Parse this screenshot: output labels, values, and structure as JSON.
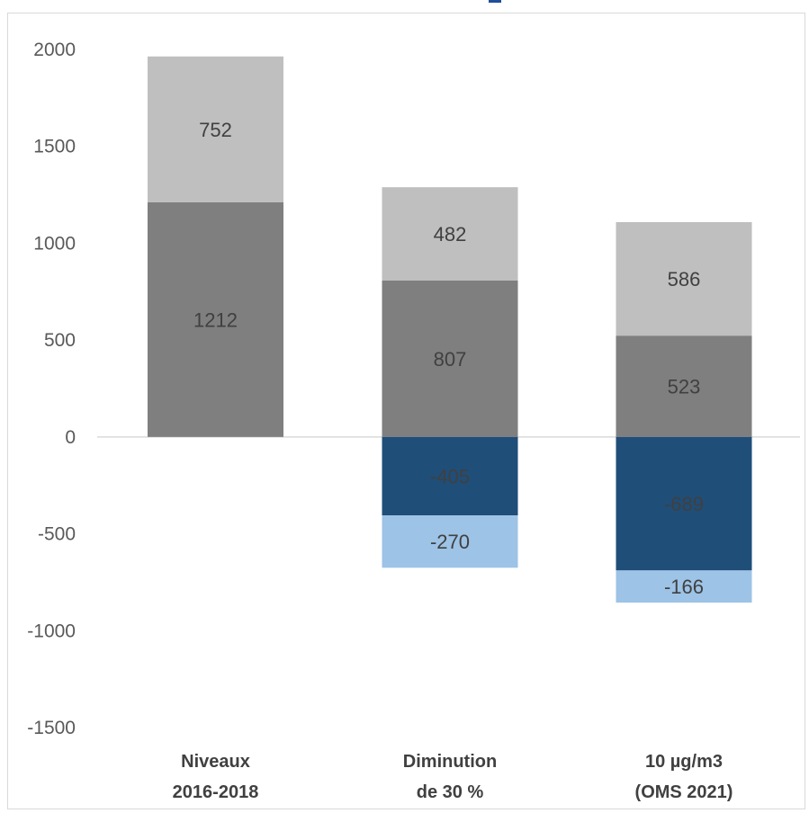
{
  "chart_data": {
    "type": "bar",
    "stacked": true,
    "categories": [
      [
        "Niveaux",
        "2016-2018"
      ],
      [
        "Diminution",
        "de 30 %"
      ],
      [
        "10 µg/m3",
        "(OMS 2021)"
      ]
    ],
    "series": [
      {
        "values": [
          1212,
          807,
          523
        ],
        "color": "#7f7f7f"
      },
      {
        "values": [
          752,
          482,
          586
        ],
        "color": "#bfbfbf"
      },
      {
        "values": [
          null,
          -405,
          -689
        ],
        "color": "#1f4e79"
      },
      {
        "values": [
          null,
          -270,
          -166
        ],
        "color": "#9dc3e6"
      }
    ],
    "yticks": [
      "2000",
      "1500",
      "1000",
      "500",
      "0",
      "-500",
      "-1000",
      "-1500"
    ],
    "ylim": [
      -1500,
      2000
    ],
    "legend": "none",
    "grid": false
  }
}
